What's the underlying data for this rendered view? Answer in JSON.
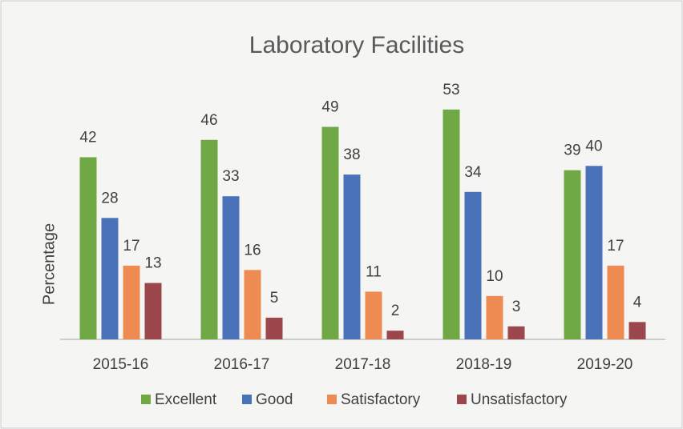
{
  "chart_data": {
    "type": "bar",
    "title": "Laboratory Facilities",
    "y_label": "Percentage",
    "categories": [
      "2015-16",
      "2016-17",
      "2017-18",
      "2018-19",
      "2019-20"
    ],
    "series": [
      {
        "name": "Excellent",
        "color": "#6fa844",
        "values": [
          42,
          46,
          49,
          53,
          39
        ]
      },
      {
        "name": "Good",
        "color": "#4a72b8",
        "values": [
          28,
          33,
          38,
          34,
          40
        ]
      },
      {
        "name": "Satisfactory",
        "color": "#ee8b53",
        "values": [
          17,
          16,
          11,
          10,
          17
        ]
      },
      {
        "name": "Unsatisfactory",
        "color": "#9c474c",
        "values": [
          13,
          5,
          2,
          3,
          4
        ]
      }
    ],
    "ylim": [
      0,
      55
    ],
    "legend": "bottom"
  }
}
